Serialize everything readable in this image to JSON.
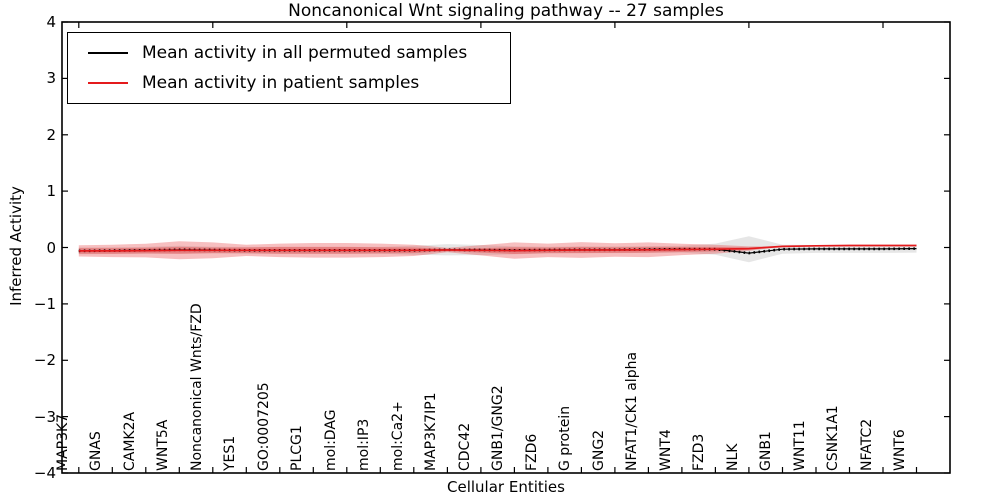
{
  "chart_data": {
    "type": "line",
    "title": "Noncanonical Wnt signaling pathway -- 27 samples",
    "xlabel": "Cellular Entities",
    "ylabel": "Inferred Activity",
    "ylim": [
      -4,
      4
    ],
    "xlim": [
      -0.5,
      26
    ],
    "yticks": [
      4,
      3,
      2,
      1,
      0,
      -1,
      -2,
      -3,
      -4
    ],
    "ytick_labels": [
      "4",
      "3",
      "2",
      "1",
      "0",
      "−1",
      "−2",
      "−3",
      "−4"
    ],
    "top_tick_indices": [
      0,
      4,
      8,
      12,
      16,
      20,
      24
    ],
    "grid": false,
    "categories": [
      "MAP3K7",
      "GNAS",
      "CAMK2A",
      "WNT5A",
      "Noncanonical Wnts/FZD",
      "YES1",
      "GO:0007205",
      "PLCG1",
      "mol:DAG",
      "mol:IP3",
      "mol:Ca2+",
      "MAP3K7IP1",
      "CDC42",
      "GNB1/GNG2",
      "FZD6",
      "G protein",
      "GNG2",
      "NFAT1/CK1 alpha",
      "WNT4",
      "FZD3",
      "NLK",
      "GNB1",
      "WNT11",
      "CSNK1A1",
      "NFATC2",
      "WNT6"
    ],
    "series": [
      {
        "name": "Mean activity in all permuted samples",
        "color": "#000000",
        "style": "dotted",
        "values": [
          -0.06,
          -0.055,
          -0.05,
          -0.04,
          -0.045,
          -0.05,
          -0.05,
          -0.05,
          -0.05,
          -0.05,
          -0.05,
          -0.04,
          -0.045,
          -0.05,
          -0.045,
          -0.04,
          -0.04,
          -0.035,
          -0.03,
          -0.03,
          -0.1,
          -0.03,
          -0.025,
          -0.025,
          -0.025,
          -0.02
        ]
      },
      {
        "name": "Mean activity in patient samples",
        "color": "#e41a1c",
        "style": "solid",
        "values": [
          -0.06,
          -0.06,
          -0.055,
          -0.05,
          -0.05,
          -0.05,
          -0.05,
          -0.05,
          -0.05,
          -0.05,
          -0.05,
          -0.045,
          -0.05,
          -0.055,
          -0.05,
          -0.045,
          -0.045,
          -0.04,
          -0.035,
          -0.03,
          -0.02,
          0.02,
          0.03,
          0.035,
          0.035,
          0.035
        ]
      }
    ],
    "bands": [
      {
        "name": "permuted-samples-range",
        "color": "#d9d9d9",
        "opacity": 0.65,
        "upper": [
          0.0,
          0.005,
          0.01,
          0.03,
          0.015,
          0.01,
          0.01,
          0.01,
          0.01,
          0.01,
          0.03,
          0.06,
          0.045,
          0.02,
          0.015,
          0.02,
          0.02,
          0.025,
          0.03,
          0.07,
          0.2,
          0.05,
          0.045,
          0.045,
          0.045,
          0.05
        ],
        "lower": [
          -0.12,
          -0.115,
          -0.11,
          -0.11,
          -0.105,
          -0.11,
          -0.11,
          -0.11,
          -0.11,
          -0.11,
          -0.13,
          -0.14,
          -0.135,
          -0.12,
          -0.105,
          -0.1,
          -0.1,
          -0.095,
          -0.09,
          -0.13,
          -0.26,
          -0.11,
          -0.095,
          -0.095,
          -0.095,
          -0.09
        ]
      },
      {
        "name": "patient-samples-range-outer",
        "color": "#e41a1c",
        "opacity": 0.28,
        "upper": [
          0.04,
          0.05,
          0.065,
          0.11,
          0.09,
          0.05,
          0.07,
          0.08,
          0.08,
          0.07,
          0.05,
          -0.005,
          0.04,
          0.09,
          0.07,
          0.095,
          0.075,
          0.09,
          0.065,
          0.05,
          0.02,
          0.02,
          0.03,
          0.035,
          0.035,
          0.035
        ],
        "lower": [
          -0.16,
          -0.17,
          -0.175,
          -0.21,
          -0.19,
          -0.15,
          -0.17,
          -0.18,
          -0.18,
          -0.17,
          -0.15,
          -0.085,
          -0.14,
          -0.2,
          -0.17,
          -0.185,
          -0.165,
          -0.17,
          -0.135,
          -0.11,
          -0.06,
          0.02,
          0.03,
          0.035,
          0.035,
          0.035
        ]
      },
      {
        "name": "patient-samples-range-inner",
        "color": "#e41a1c",
        "opacity": 0.3,
        "upper": [
          -0.01,
          -0.01,
          -0.005,
          0.01,
          0.0,
          0.0,
          0.01,
          0.01,
          0.01,
          0.005,
          0.0,
          -0.025,
          -0.01,
          0.005,
          0.0,
          0.01,
          0.005,
          0.01,
          0.01,
          0.01,
          0.0,
          0.02,
          0.03,
          0.035,
          0.035,
          0.035
        ],
        "lower": [
          -0.11,
          -0.11,
          -0.105,
          -0.11,
          -0.1,
          -0.1,
          -0.11,
          -0.11,
          -0.11,
          -0.105,
          -0.1,
          -0.065,
          -0.09,
          -0.115,
          -0.1,
          -0.1,
          -0.095,
          -0.09,
          -0.08,
          -0.07,
          -0.04,
          0.02,
          0.03,
          0.035,
          0.035,
          0.035
        ]
      }
    ],
    "legend": {
      "position": "upper left",
      "entries": [
        {
          "label": "Mean activity in all permuted samples",
          "color": "#000000"
        },
        {
          "label": "Mean activity in patient samples",
          "color": "#e41a1c"
        }
      ]
    },
    "colors": {
      "axes": "#000000",
      "background": "#ffffff",
      "patient_line": "#e41a1c",
      "permuted_line": "#000000",
      "permuted_band": "#d9d9d9"
    }
  }
}
